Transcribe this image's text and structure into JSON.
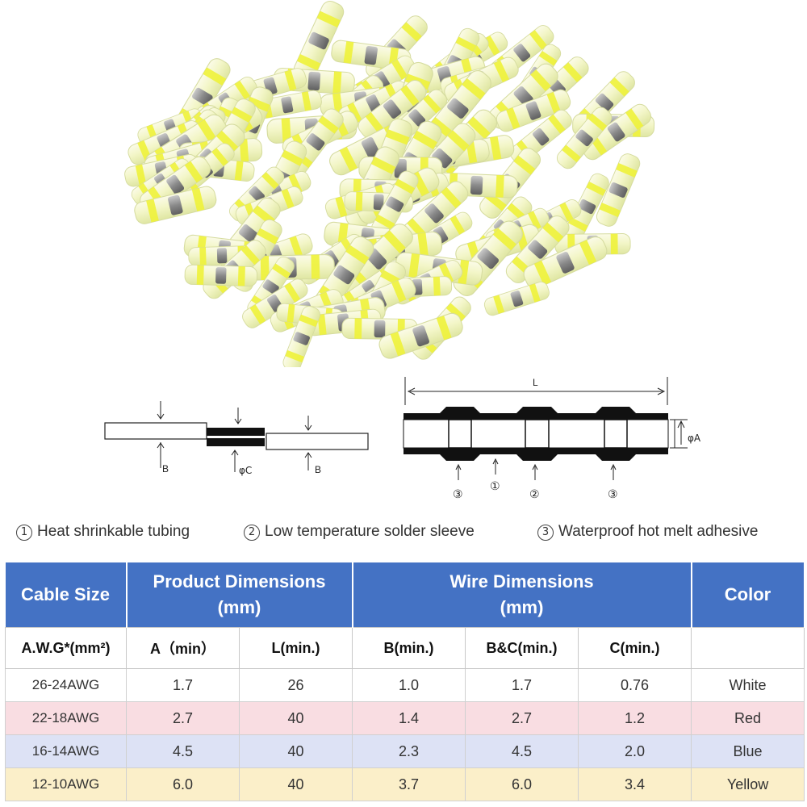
{
  "legend": [
    {
      "num": "1",
      "text": "Heat shrinkable tubing"
    },
    {
      "num": "2",
      "text": "Low temperature solder sleeve"
    },
    {
      "num": "3",
      "text": "Waterproof hot melt adhesive"
    }
  ],
  "diagram_left": {
    "label_b1": "B",
    "label_c": "φC",
    "label_b2": "B"
  },
  "diagram_right": {
    "label_l": "L",
    "label_a": "φA",
    "marker_1": "①",
    "marker_2": "②",
    "marker_3a": "③",
    "marker_3b": "③"
  },
  "table": {
    "header_top": {
      "cable_size": "Cable Size",
      "product_dim_line1": "Product Dimensions",
      "product_dim_line2": "(mm)",
      "wire_dim_line1": "Wire Dimensions",
      "wire_dim_line2": "(mm)",
      "color": "Color"
    },
    "subheaders": [
      "A.W.G*(mm²)",
      "A（min）",
      "L(min.)",
      "B(min.)",
      "B&C(min.)",
      "C(min.)",
      ""
    ],
    "rows": [
      {
        "awg": "26-24AWG",
        "a": "1.7",
        "l": "26",
        "b": "1.0",
        "bc": "1.7",
        "c": "0.76",
        "color": "White"
      },
      {
        "awg": "22-18AWG",
        "a": "2.7",
        "l": "40",
        "b": "1.4",
        "bc": "2.7",
        "c": "1.2",
        "color": "Red"
      },
      {
        "awg": "16-14AWG",
        "a": "4.5",
        "l": "40",
        "b": "2.3",
        "bc": "4.5",
        "c": "2.0",
        "color": "Blue"
      },
      {
        "awg": "12-10AWG",
        "a": "6.0",
        "l": "40",
        "b": "3.7",
        "bc": "6.0",
        "c": "3.4",
        "color": "Yellow"
      }
    ]
  }
}
